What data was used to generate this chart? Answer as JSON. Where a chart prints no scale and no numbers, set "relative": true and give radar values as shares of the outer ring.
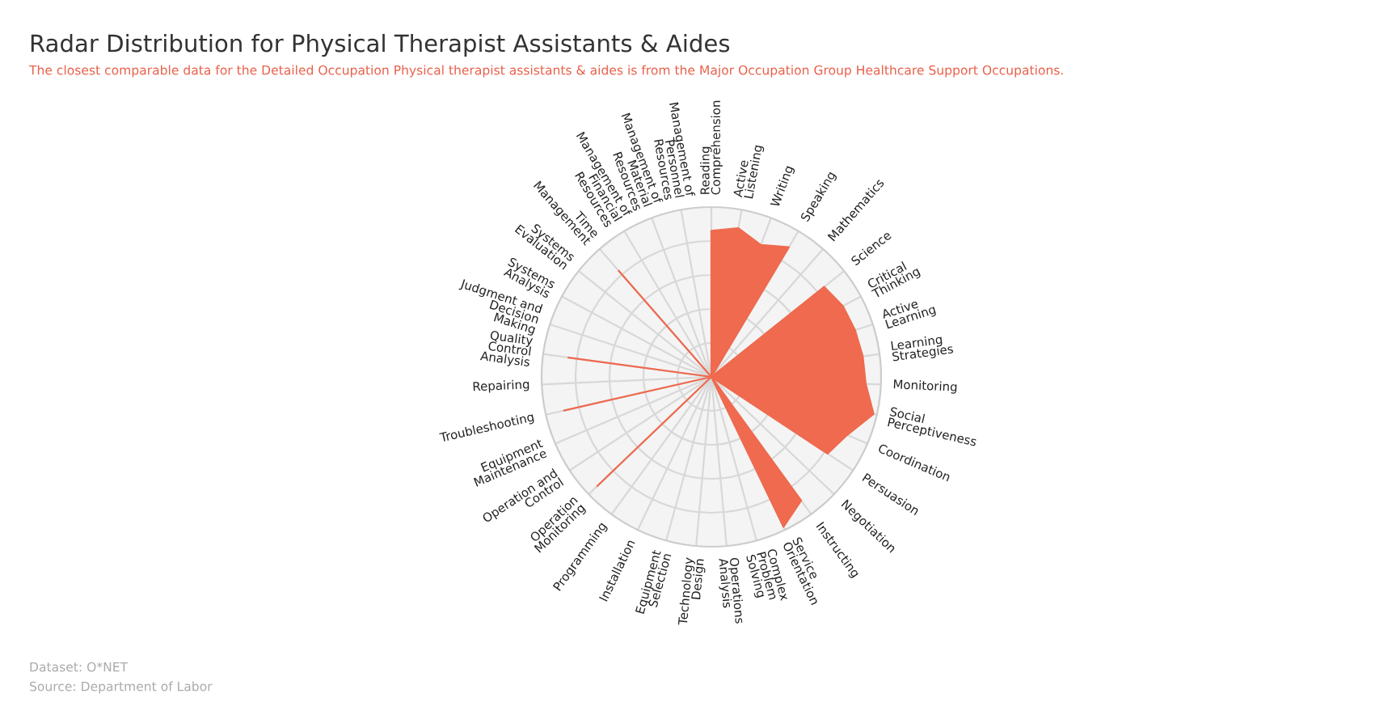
{
  "chart_data": {
    "type": "radar",
    "title": "Radar Distribution for Physical Therapist Assistants & Aides",
    "subtitle": "The closest comparable data for the Detailed Occupation Physical therapist assistants & aides is from the Major Occupation Group Healthcare Support Occupations.",
    "annotations": [
      "Dataset: O*NET",
      "Source: Department of Labor"
    ],
    "categories": [
      "Reading Comprehension",
      "Active Listening",
      "Writing",
      "Speaking",
      "Mathematics",
      "Science",
      "Critical Thinking",
      "Active Learning",
      "Learning Strategies",
      "Monitoring",
      "Social Perceptiveness",
      "Coordination",
      "Persuasion",
      "Negotiation",
      "Instructing",
      "Service Orientation",
      "Complex Problem Solving",
      "Operations Analysis",
      "Technology Design",
      "Equipment Selection",
      "Installation",
      "Programming",
      "Operation Monitoring",
      "Operation and Control",
      "Equipment Maintenance",
      "Troubleshooting",
      "Repairing",
      "Quality Control Analysis",
      "Judgment and Decision Making",
      "Systems Analysis",
      "Systems Evaluation",
      "Time Management",
      "Management of Financial Resources",
      "Management of Material Resources",
      "Management of Personnel Resources"
    ],
    "series": [
      {
        "color": "#ef6a4f",
        "values": [
          0.86,
          0.89,
          0.83,
          0.89,
          0,
          0.85,
          0.88,
          0.89,
          0.9,
          0.91,
          0.98,
          0.87,
          0.82,
          0,
          0.9,
          0.98,
          0,
          0,
          0,
          0,
          0,
          0,
          0.93,
          0,
          0,
          0.89,
          0,
          0.85,
          0,
          0,
          0,
          0.83,
          0,
          0,
          0
        ]
      }
    ],
    "relative": true,
    "grid": true
  }
}
